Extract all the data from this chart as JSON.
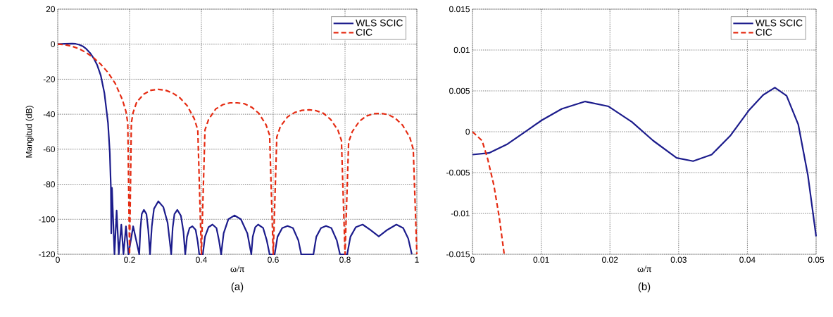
{
  "chart_data": [
    {
      "type": "line",
      "xlabel": "ω/π",
      "ylabel": "Mangitud (dB)",
      "annotations": [
        "(a)"
      ],
      "xlim": [
        0,
        1
      ],
      "ylim": [
        -120,
        20
      ],
      "xticks": [
        0,
        0.2,
        0.4,
        0.6,
        0.8,
        1
      ],
      "yticks": [
        -120,
        -100,
        -80,
        -60,
        -40,
        -20,
        0,
        20
      ],
      "grid": true,
      "legend": "top right",
      "series": [
        {
          "name": "WLS SCIC",
          "color": "#1c1c8c",
          "line_style": "solid",
          "x": [
            0,
            0.02,
            0.04,
            0.05,
            0.06,
            0.07,
            0.08,
            0.09,
            0.1,
            0.11,
            0.12,
            0.13,
            0.14,
            0.145,
            0.148,
            0.149,
            0.151,
            0.158,
            0.164,
            0.17,
            0.177,
            0.183,
            0.19,
            0.197,
            0.21,
            0.227,
            0.23,
            0.234,
            0.24,
            0.247,
            0.252,
            0.257,
            0.262,
            0.268,
            0.28,
            0.294,
            0.306,
            0.316,
            0.32,
            0.325,
            0.333,
            0.343,
            0.35,
            0.355,
            0.36,
            0.367,
            0.375,
            0.384,
            0.39,
            0.394,
            0.404,
            0.41,
            0.42,
            0.431,
            0.442,
            0.449,
            0.455,
            0.462,
            0.475,
            0.492,
            0.51,
            0.528,
            0.539,
            0.543,
            0.55,
            0.558,
            0.572,
            0.582,
            0.59,
            0.604,
            0.612,
            0.625,
            0.64,
            0.655,
            0.67,
            0.678,
            0.712,
            0.72,
            0.733,
            0.747,
            0.762,
            0.777,
            0.786,
            0.806,
            0.815,
            0.83,
            0.849,
            0.87,
            0.894,
            0.918,
            0.943,
            0.962,
            0.976,
            0.986
          ],
          "values": [
            0,
            0.2,
            0.3,
            0.2,
            -0.3,
            -1.2,
            -2.8,
            -5,
            -8,
            -12,
            -18,
            -28,
            -45,
            -62,
            -82,
            -108,
            -82,
            -120,
            -95,
            -120,
            -103,
            -120,
            -104,
            -120,
            -104,
            -120,
            -106,
            -97,
            -94.6,
            -97,
            -106,
            -120,
            -104,
            -94,
            -89.7,
            -93,
            -102,
            -120,
            -105,
            -97,
            -94.6,
            -98,
            -107,
            -120,
            -110,
            -105,
            -104,
            -106,
            -113,
            -120,
            -120,
            -110,
            -104.5,
            -103,
            -105,
            -112,
            -120,
            -108,
            -100,
            -97.8,
            -100,
            -108,
            -120,
            -110,
            -104.5,
            -103,
            -105,
            -112,
            -120,
            -120,
            -110,
            -105,
            -103.8,
            -105,
            -112,
            -120,
            -120,
            -110,
            -105,
            -103.8,
            -105,
            -112,
            -120,
            -120,
            -110,
            -104.5,
            -103,
            -106,
            -109.8,
            -106,
            -103,
            -105,
            -111,
            -120
          ]
        },
        {
          "name": "CIC",
          "color": "#e52b12",
          "line_style": "dashed",
          "x": [
            0,
            0.02,
            0.04,
            0.06,
            0.08,
            0.1,
            0.12,
            0.14,
            0.16,
            0.18,
            0.19,
            0.195,
            0.2,
            0.205,
            0.21,
            0.22,
            0.24,
            0.26,
            0.28,
            0.3,
            0.32,
            0.34,
            0.36,
            0.38,
            0.39,
            0.4,
            0.41,
            0.42,
            0.44,
            0.46,
            0.48,
            0.5,
            0.52,
            0.54,
            0.56,
            0.58,
            0.59,
            0.6,
            0.61,
            0.62,
            0.64,
            0.66,
            0.68,
            0.7,
            0.72,
            0.74,
            0.76,
            0.78,
            0.79,
            0.8,
            0.81,
            0.82,
            0.84,
            0.86,
            0.88,
            0.9,
            0.92,
            0.94,
            0.96,
            0.98,
            0.99,
            1
          ],
          "values": [
            0,
            -0.3,
            -1.2,
            -2.7,
            -4.9,
            -7.8,
            -11.5,
            -16.2,
            -22.4,
            -31.7,
            -38.5,
            -45,
            -120,
            -45,
            -39,
            -33,
            -28.5,
            -26.3,
            -25.8,
            -26.3,
            -27.9,
            -30.6,
            -35,
            -42.5,
            -49,
            -120,
            -49,
            -43,
            -37,
            -34.5,
            -33.5,
            -33.5,
            -34,
            -36,
            -39.5,
            -46,
            -52,
            -120,
            -53,
            -47,
            -41.5,
            -39,
            -37.8,
            -37.5,
            -38,
            -39.5,
            -43,
            -49,
            -55,
            -120,
            -56,
            -50,
            -44,
            -41,
            -39.7,
            -39.5,
            -40.2,
            -42.3,
            -46.2,
            -53,
            -60,
            -120
          ]
        }
      ]
    },
    {
      "type": "line",
      "xlabel": "ω/π",
      "annotations": [
        "(b)"
      ],
      "xlim": [
        0,
        0.05
      ],
      "ylim": [
        -0.015,
        0.015
      ],
      "xticks": [
        0,
        0.01,
        0.02,
        0.03,
        0.04,
        0.05
      ],
      "yticks": [
        -0.015,
        -0.01,
        -0.005,
        0,
        0.005,
        0.01,
        0.015
      ],
      "grid": true,
      "legend": "top right",
      "series": [
        {
          "name": "WLS SCIC",
          "color": "#1c1c8c",
          "line_style": "solid",
          "x": [
            0,
            0.0024,
            0.0051,
            0.00785,
            0.01007,
            0.013,
            0.0164,
            0.0198,
            0.0232,
            0.0263,
            0.0297,
            0.0321,
            0.0348,
            0.0375,
            0.0403,
            0.0423,
            0.044,
            0.0457,
            0.0474,
            0.0488,
            0.05
          ],
          "values": [
            -0.0028,
            -0.0026,
            -0.0015,
            0.0001,
            0.0014,
            0.0028,
            0.0037,
            0.0031,
            0.0012,
            -0.0011,
            -0.0032,
            -0.0036,
            -0.0028,
            -0.0005,
            0.0027,
            0.0045,
            0.0054,
            0.0044,
            0.0009,
            -0.0053,
            -0.0128
          ]
        },
        {
          "name": "CIC",
          "color": "#e52b12",
          "line_style": "dashed",
          "x": [
            0,
            0.0014,
            0.0022,
            0.0031,
            0.0039,
            0.0046
          ],
          "values": [
            0,
            -0.0011,
            -0.0033,
            -0.0065,
            -0.0105,
            -0.0149
          ]
        }
      ]
    }
  ]
}
